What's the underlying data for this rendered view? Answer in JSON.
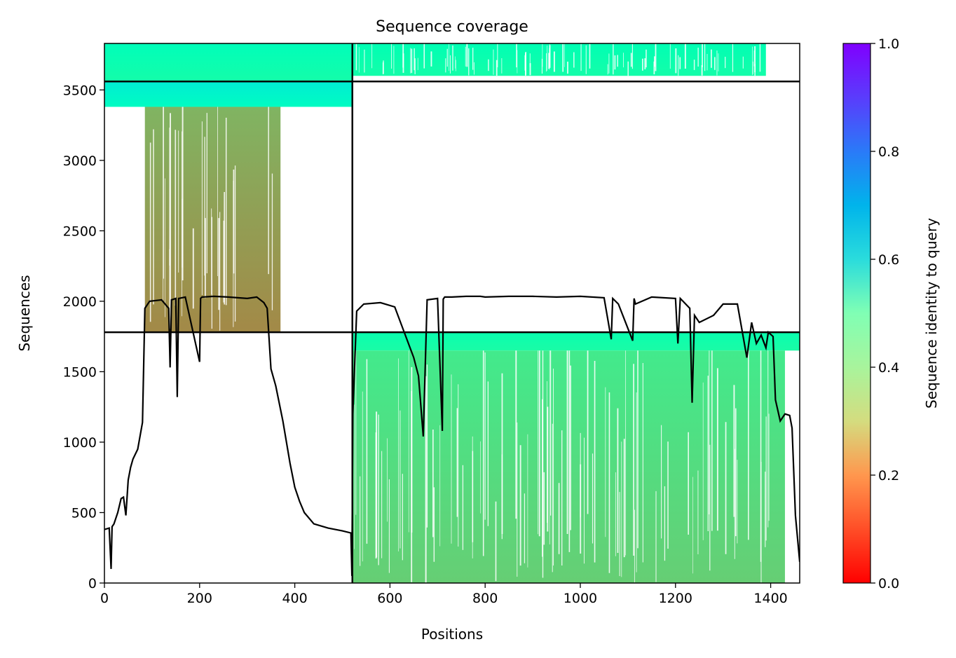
{
  "chart_data": {
    "type": "heatmap",
    "title": "Sequence coverage",
    "xlabel": "Positions",
    "ylabel": "Sequences",
    "xlim": [
      0,
      1461
    ],
    "ylim": [
      0,
      3830
    ],
    "x_ticks": [
      0,
      200,
      400,
      600,
      800,
      1000,
      1200,
      1400
    ],
    "y_ticks": [
      0,
      500,
      1000,
      1500,
      2000,
      2500,
      3000,
      3500
    ],
    "colorbar": {
      "label": "Sequence identity to query",
      "colormap": "rainbow_r",
      "range": [
        0,
        1
      ],
      "ticks": [
        "0.0",
        "0.2",
        "0.4",
        "0.6",
        "0.8",
        "1.0"
      ]
    },
    "dividers": {
      "vertical_x": [
        521
      ],
      "horizontal_y": [
        1780,
        3560
      ]
    },
    "coverage_blocks": [
      {
        "x0": 0,
        "x1": 521,
        "y0": 3560,
        "y1": 3830,
        "identity_bottom": 0.46,
        "identity_top": 0.52,
        "note": "top-left block"
      },
      {
        "x0": 0,
        "x1": 521,
        "y0": 3380,
        "y1": 3560,
        "identity_bottom": 0.55,
        "identity_top": 0.62,
        "note": "cyan band"
      },
      {
        "x0": 85,
        "x1": 370,
        "y0": 1780,
        "y1": 3380,
        "identity_bottom": 0.18,
        "identity_top": 0.25,
        "note": "orange block"
      },
      {
        "x0": 521,
        "x1": 1390,
        "y0": 3600,
        "y1": 3830,
        "identity_bottom": 0.46,
        "identity_top": 0.5,
        "note": "top-right block"
      },
      {
        "x0": 521,
        "x1": 1461,
        "y0": 1650,
        "y1": 1780,
        "identity_bottom": 0.45,
        "identity_top": 0.48,
        "note": "green band"
      },
      {
        "x0": 521,
        "x1": 1430,
        "y0": 0,
        "y1": 1650,
        "identity_bottom": 0.3,
        "identity_top": 0.37,
        "note": "lower-right block"
      }
    ],
    "coverage_line": {
      "x": [
        0,
        10,
        14,
        16,
        20,
        28,
        35,
        40,
        45,
        50,
        55,
        60,
        70,
        80,
        85,
        95,
        120,
        135,
        138,
        141,
        150,
        153,
        156,
        170,
        200,
        202,
        205,
        230,
        260,
        300,
        320,
        335,
        342,
        350,
        360,
        375,
        390,
        400,
        410,
        420,
        440,
        470,
        500,
        518,
        520,
        522,
        530,
        545,
        580,
        610,
        650,
        660,
        670,
        678,
        700,
        710,
        712,
        715,
        730,
        760,
        790,
        800,
        850,
        900,
        950,
        1000,
        1050,
        1065,
        1068,
        1080,
        1110,
        1113,
        1116,
        1150,
        1200,
        1205,
        1210,
        1230,
        1235,
        1240,
        1250,
        1280,
        1300,
        1330,
        1350,
        1360,
        1370,
        1380,
        1390,
        1395,
        1405,
        1410,
        1420,
        1430,
        1440,
        1445,
        1452,
        1461
      ],
      "y": [
        380,
        390,
        100,
        400,
        420,
        500,
        600,
        610,
        480,
        730,
        820,
        880,
        950,
        1140,
        1950,
        2000,
        2010,
        1950,
        1530,
        2010,
        2020,
        1320,
        2020,
        2030,
        1570,
        2020,
        2030,
        2035,
        2030,
        2020,
        2030,
        1990,
        1950,
        1520,
        1400,
        1150,
        850,
        680,
        580,
        500,
        420,
        390,
        370,
        355,
        50,
        1200,
        1930,
        1980,
        1990,
        1960,
        1600,
        1470,
        1040,
        2010,
        2020,
        1080,
        2015,
        2030,
        2030,
        2035,
        2035,
        2030,
        2035,
        2035,
        2030,
        2035,
        2025,
        1730,
        2020,
        1980,
        1720,
        2020,
        1980,
        2030,
        2020,
        1700,
        2020,
        1950,
        1280,
        1900,
        1850,
        1900,
        1980,
        1980,
        1600,
        1850,
        1700,
        1760,
        1670,
        1780,
        1750,
        1300,
        1150,
        1200,
        1190,
        1100,
        480,
        150,
        0
      ]
    }
  }
}
